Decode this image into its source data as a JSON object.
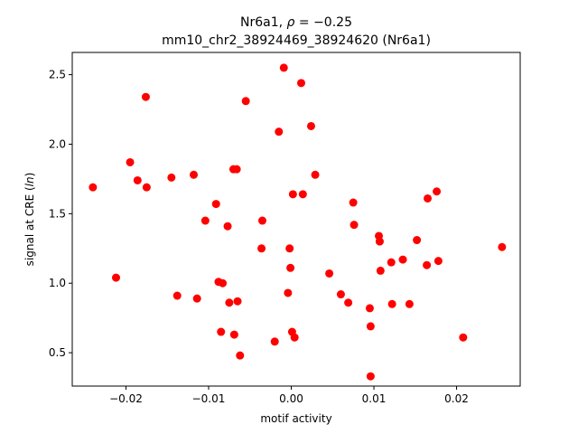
{
  "chart_data": {
    "type": "scatter",
    "title_line1_prefix": "Nr6a1, ",
    "title_rho_symbol": "ρ",
    "title_rho_value": " = −0.25",
    "title_line2": "mm10_chr2_38924469_38924620 (Nr6a1)",
    "xlabel": "motif activity",
    "ylabel_prefix": "signal at CRE (",
    "ylabel_italic": "ln",
    "ylabel_suffix": ")",
    "xlim": [
      -0.0265,
      0.0277
    ],
    "ylim": [
      0.26,
      2.66
    ],
    "x_ticks": [
      {
        "value": -0.02,
        "label": "−0.02"
      },
      {
        "value": -0.01,
        "label": "−0.01"
      },
      {
        "value": 0.0,
        "label": "0.00"
      },
      {
        "value": 0.01,
        "label": "0.01"
      },
      {
        "value": 0.02,
        "label": "0.02"
      }
    ],
    "y_ticks": [
      {
        "value": 0.5,
        "label": "0.5"
      },
      {
        "value": 1.0,
        "label": "1.0"
      },
      {
        "value": 1.5,
        "label": "1.5"
      },
      {
        "value": 2.0,
        "label": "2.0"
      },
      {
        "value": 2.5,
        "label": "2.5"
      }
    ],
    "point_color": "#ff0000",
    "grid": false,
    "points": [
      {
        "x": -0.024,
        "y": 1.69
      },
      {
        "x": -0.0212,
        "y": 1.04
      },
      {
        "x": -0.0195,
        "y": 1.87
      },
      {
        "x": -0.0186,
        "y": 1.74
      },
      {
        "x": -0.0176,
        "y": 2.34
      },
      {
        "x": -0.0175,
        "y": 1.69
      },
      {
        "x": -0.0145,
        "y": 1.76
      },
      {
        "x": -0.0138,
        "y": 0.91
      },
      {
        "x": -0.0118,
        "y": 1.78
      },
      {
        "x": -0.0114,
        "y": 0.89
      },
      {
        "x": -0.0104,
        "y": 1.45
      },
      {
        "x": -0.0091,
        "y": 1.57
      },
      {
        "x": -0.0088,
        "y": 1.01
      },
      {
        "x": -0.0085,
        "y": 0.65
      },
      {
        "x": -0.0083,
        "y": 1.0
      },
      {
        "x": -0.0077,
        "y": 1.41
      },
      {
        "x": -0.0075,
        "y": 0.86
      },
      {
        "x": -0.007,
        "y": 1.82
      },
      {
        "x": -0.0069,
        "y": 0.63
      },
      {
        "x": -0.0066,
        "y": 1.82
      },
      {
        "x": -0.0065,
        "y": 0.87
      },
      {
        "x": -0.0062,
        "y": 0.48
      },
      {
        "x": -0.0055,
        "y": 2.31
      },
      {
        "x": -0.0036,
        "y": 1.25
      },
      {
        "x": -0.0035,
        "y": 1.45
      },
      {
        "x": -0.002,
        "y": 0.58
      },
      {
        "x": -0.0015,
        "y": 2.09
      },
      {
        "x": -0.0009,
        "y": 2.55
      },
      {
        "x": -0.0004,
        "y": 0.93
      },
      {
        "x": -0.0002,
        "y": 1.25
      },
      {
        "x": -0.0001,
        "y": 1.11
      },
      {
        "x": 0.0001,
        "y": 0.65
      },
      {
        "x": 0.0002,
        "y": 1.64
      },
      {
        "x": 0.0004,
        "y": 0.61
      },
      {
        "x": 0.0012,
        "y": 2.44
      },
      {
        "x": 0.0014,
        "y": 1.64
      },
      {
        "x": 0.0024,
        "y": 2.13
      },
      {
        "x": 0.0029,
        "y": 1.78
      },
      {
        "x": 0.0046,
        "y": 1.07
      },
      {
        "x": 0.006,
        "y": 0.92
      },
      {
        "x": 0.0069,
        "y": 0.86
      },
      {
        "x": 0.0075,
        "y": 1.58
      },
      {
        "x": 0.0076,
        "y": 1.42
      },
      {
        "x": 0.0095,
        "y": 0.82
      },
      {
        "x": 0.0096,
        "y": 0.69
      },
      {
        "x": 0.0096,
        "y": 0.33
      },
      {
        "x": 0.0106,
        "y": 1.34
      },
      {
        "x": 0.0107,
        "y": 1.3
      },
      {
        "x": 0.0108,
        "y": 1.09
      },
      {
        "x": 0.0121,
        "y": 1.15
      },
      {
        "x": 0.0122,
        "y": 0.85
      },
      {
        "x": 0.0135,
        "y": 1.17
      },
      {
        "x": 0.0143,
        "y": 0.85
      },
      {
        "x": 0.0152,
        "y": 1.31
      },
      {
        "x": 0.0164,
        "y": 1.13
      },
      {
        "x": 0.0165,
        "y": 1.61
      },
      {
        "x": 0.0176,
        "y": 1.66
      },
      {
        "x": 0.0178,
        "y": 1.16
      },
      {
        "x": 0.0208,
        "y": 0.61
      },
      {
        "x": 0.0255,
        "y": 1.26
      }
    ]
  }
}
